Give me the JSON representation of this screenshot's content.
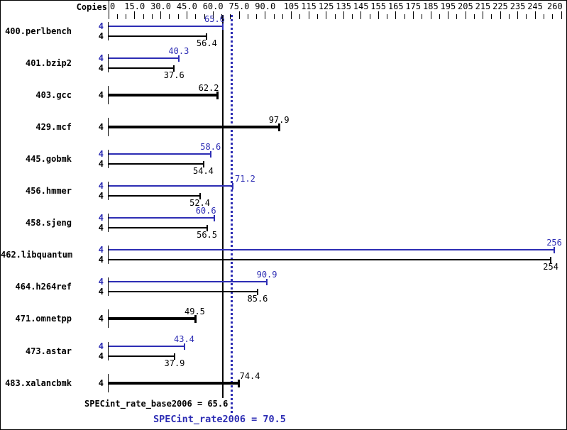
{
  "window": {
    "background": "#ffffff",
    "border_color": "#000000"
  },
  "colors": {
    "peak": "#2d2db4",
    "base": "#000000"
  },
  "header": {
    "copies_label": "Copies"
  },
  "axis": {
    "min": 0,
    "max": 260,
    "minor_step": 5,
    "ticks": [
      {
        "v": 0,
        "label": "0"
      },
      {
        "v": 15,
        "label": "15.0"
      },
      {
        "v": 30,
        "label": "30.0"
      },
      {
        "v": 45,
        "label": "45.0"
      },
      {
        "v": 60,
        "label": "60.0"
      },
      {
        "v": 75,
        "label": "75.0"
      },
      {
        "v": 90,
        "label": "90.0"
      },
      {
        "v": 105,
        "label": "105"
      },
      {
        "v": 115,
        "label": "115"
      },
      {
        "v": 125,
        "label": "125"
      },
      {
        "v": 135,
        "label": "135"
      },
      {
        "v": 145,
        "label": "145"
      },
      {
        "v": 155,
        "label": "155"
      },
      {
        "v": 165,
        "label": "165"
      },
      {
        "v": 175,
        "label": "175"
      },
      {
        "v": 185,
        "label": "185"
      },
      {
        "v": 195,
        "label": "195"
      },
      {
        "v": 205,
        "label": "205"
      },
      {
        "v": 215,
        "label": "215"
      },
      {
        "v": 225,
        "label": "225"
      },
      {
        "v": 235,
        "label": "235"
      },
      {
        "v": 245,
        "label": "245"
      },
      {
        "v": 260,
        "label": "260"
      }
    ]
  },
  "chart_data": {
    "type": "bar",
    "orientation": "horizontal",
    "xlim": [
      0,
      260
    ],
    "series": [
      {
        "name": "peak",
        "color": "#2d2db4"
      },
      {
        "name": "base",
        "color": "#000000"
      }
    ],
    "benchmarks": [
      {
        "name": "400.perlbench",
        "copies": 4,
        "peak": 65.6,
        "base": 56.4
      },
      {
        "name": "401.bzip2",
        "copies": 4,
        "peak": 40.3,
        "base": 37.6
      },
      {
        "name": "403.gcc",
        "copies": 4,
        "peak": null,
        "base": 62.2
      },
      {
        "name": "429.mcf",
        "copies": 4,
        "peak": null,
        "base": 97.9
      },
      {
        "name": "445.gobmk",
        "copies": 4,
        "peak": 58.6,
        "base": 54.4
      },
      {
        "name": "456.hmmer",
        "copies": 4,
        "peak": 71.2,
        "base": 52.4
      },
      {
        "name": "458.sjeng",
        "copies": 4,
        "peak": 60.6,
        "base": 56.5
      },
      {
        "name": "462.libquantum",
        "copies": 4,
        "peak": 256,
        "base": 254
      },
      {
        "name": "464.h264ref",
        "copies": 4,
        "peak": 90.9,
        "base": 85.6
      },
      {
        "name": "471.omnetpp",
        "copies": 4,
        "peak": null,
        "base": 49.5
      },
      {
        "name": "473.astar",
        "copies": 4,
        "peak": 43.4,
        "base": 37.9
      },
      {
        "name": "483.xalancbmk",
        "copies": 4,
        "peak": null,
        "base": 74.4
      }
    ],
    "reference_lines": [
      {
        "name": "base",
        "value": 65.6,
        "style": "solid",
        "color": "#000000"
      },
      {
        "name": "peak",
        "value": 70.5,
        "style": "dotted",
        "color": "#2d2db4"
      }
    ]
  },
  "footer": {
    "base_summary": "SPECint_rate_base2006 = 65.6",
    "peak_summary": "SPECint_rate2006 = 70.5"
  }
}
